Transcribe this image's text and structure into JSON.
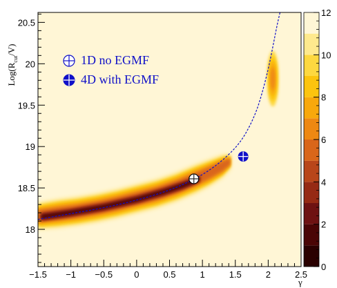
{
  "chart_data": {
    "type": "heatmap",
    "xlabel": "γ",
    "ylabel_main": "Log(R",
    "ylabel_sub": "cut",
    "ylabel_tail": "/V)",
    "xlim": [
      -1.5,
      2.5
    ],
    "ylim": [
      17.55,
      20.62
    ],
    "x_ticks": [
      {
        "value": -1.5,
        "label": "−1.5"
      },
      {
        "value": -1,
        "label": "−1"
      },
      {
        "value": -0.5,
        "label": "−0.5"
      },
      {
        "value": 0,
        "label": "0"
      },
      {
        "value": 0.5,
        "label": "0.5"
      },
      {
        "value": 1,
        "label": "1"
      },
      {
        "value": 1.5,
        "label": "1.5"
      },
      {
        "value": 2,
        "label": "2"
      },
      {
        "value": 2.5,
        "label": "2.5"
      }
    ],
    "y_ticks": [
      {
        "value": 18,
        "label": "18"
      },
      {
        "value": 18.5,
        "label": "18.5"
      },
      {
        "value": 19,
        "label": "19"
      },
      {
        "value": 19.5,
        "label": "19.5"
      },
      {
        "value": 20,
        "label": "20"
      },
      {
        "value": 20.5,
        "label": "20.5"
      }
    ],
    "colorbar": {
      "range": [
        0,
        12
      ],
      "ticks": [
        {
          "value": 0,
          "label": "0"
        },
        {
          "value": 2,
          "label": "2"
        },
        {
          "value": 4,
          "label": "4"
        },
        {
          "value": 6,
          "label": "6"
        },
        {
          "value": 8,
          "label": "8"
        },
        {
          "value": 10,
          "label": "10"
        },
        {
          "value": 12,
          "label": "12"
        }
      ],
      "bands": [
        {
          "from": 0,
          "to": 1,
          "color": "#2a0000"
        },
        {
          "from": 1,
          "to": 2,
          "color": "#4a0505"
        },
        {
          "from": 2,
          "to": 3,
          "color": "#6e1212"
        },
        {
          "from": 3,
          "to": 4,
          "color": "#962a14"
        },
        {
          "from": 4,
          "to": 5,
          "color": "#b8461a"
        },
        {
          "from": 5,
          "to": 6,
          "color": "#d9661a"
        },
        {
          "from": 6,
          "to": 7,
          "color": "#ee8812"
        },
        {
          "from": 7,
          "to": 8,
          "color": "#f8a80c"
        },
        {
          "from": 8,
          "to": 9,
          "color": "#fcc40e"
        },
        {
          "from": 9,
          "to": 10,
          "color": "#fdd840"
        },
        {
          "from": 10,
          "to": 11,
          "color": "#fee98e"
        },
        {
          "from": 11,
          "to": 12,
          "color": "#fff6d6"
        }
      ]
    },
    "band_main": [
      [
        -1.5,
        18.16,
        0.13
      ],
      [
        -1.2,
        18.19,
        0.14
      ],
      [
        -0.9,
        18.22,
        0.14
      ],
      [
        -0.6,
        18.26,
        0.14
      ],
      [
        -0.3,
        18.31,
        0.14
      ],
      [
        0.0,
        18.37,
        0.14
      ],
      [
        0.3,
        18.43,
        0.14
      ],
      [
        0.6,
        18.51,
        0.14
      ],
      [
        0.9,
        18.61,
        0.14
      ],
      [
        1.1,
        18.68,
        0.13
      ],
      [
        1.3,
        18.76,
        0.11
      ],
      [
        1.42,
        18.82,
        0.07
      ]
    ],
    "band_core": [
      [
        -1.45,
        18.15,
        0.06
      ],
      [
        -1.0,
        18.2,
        0.06
      ],
      [
        -0.5,
        18.27,
        0.06
      ],
      [
        0.0,
        18.36,
        0.06
      ],
      [
        0.4,
        18.45,
        0.06
      ],
      [
        0.7,
        18.53,
        0.06
      ],
      [
        0.95,
        18.61,
        0.05
      ]
    ],
    "blob_upper": {
      "cx": 2.07,
      "cy": 19.82,
      "rx": 0.07,
      "ry": 0.27
    },
    "dashed_curve": {
      "points": [
        [
          -1.5,
          18.12
        ],
        [
          -1.0,
          18.19
        ],
        [
          -0.5,
          18.26
        ],
        [
          0.0,
          18.35
        ],
        [
          0.5,
          18.47
        ],
        [
          0.87,
          18.6
        ],
        [
          1.1,
          18.71
        ],
        [
          1.3,
          18.83
        ],
        [
          1.5,
          18.98
        ],
        [
          1.65,
          19.14
        ],
        [
          1.8,
          19.38
        ],
        [
          1.9,
          19.62
        ],
        [
          2.0,
          19.93
        ],
        [
          2.07,
          20.2
        ],
        [
          2.13,
          20.45
        ],
        [
          2.18,
          20.62
        ]
      ],
      "color": "#1010c8"
    },
    "markers": [
      {
        "name": "1D no EGMF",
        "x": 0.87,
        "y": 18.61,
        "style": "open-cross"
      },
      {
        "name": "4D with EGMF",
        "x": 1.62,
        "y": 18.88,
        "style": "filled-cross"
      }
    ],
    "legend": [
      {
        "label": "1D no EGMF",
        "style": "open-cross"
      },
      {
        "label": "4D with EGMF",
        "style": "filled-cross"
      }
    ],
    "marker_color": "#1010c8"
  }
}
